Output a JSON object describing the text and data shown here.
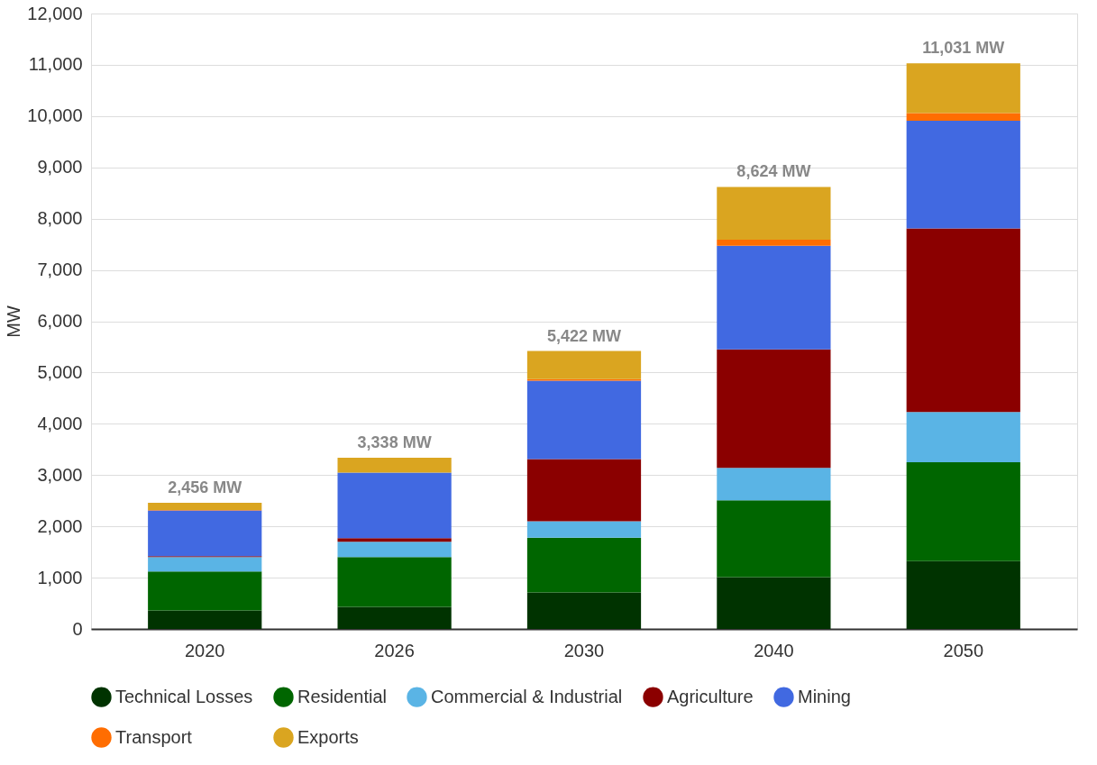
{
  "chart_data": {
    "type": "bar",
    "stacked": true,
    "ylabel": "MW",
    "categories": [
      "2020",
      "2026",
      "2030",
      "2040",
      "2050"
    ],
    "series": [
      {
        "name": "Technical Losses",
        "color": "#003300",
        "values": [
          360,
          430,
          710,
          1010,
          1320
        ]
      },
      {
        "name": "Residential",
        "color": "#006600",
        "values": [
          760,
          970,
          1070,
          1500,
          1930
        ]
      },
      {
        "name": "Commercial & Industrial",
        "color": "#5ab4e5",
        "values": [
          280,
          300,
          320,
          630,
          980
        ]
      },
      {
        "name": "Agriculture",
        "color": "#8b0000",
        "values": [
          20,
          70,
          1210,
          2310,
          3580
        ]
      },
      {
        "name": "Mining",
        "color": "#4169e1",
        "values": [
          890,
          1280,
          1530,
          2020,
          2100
        ]
      },
      {
        "name": "Transport",
        "color": "#ff6d01",
        "values": [
          10,
          null,
          30,
          120,
          150
        ]
      },
      {
        "name": "Exports",
        "color": "#daa520",
        "values": [
          140,
          290,
          550,
          1030,
          970
        ]
      }
    ],
    "totals": [
      "2,456 MW",
      "3,338 MW",
      "5,422 MW",
      "8,624 MW",
      "11,031 MW"
    ],
    "ylim": [
      0,
      12000
    ],
    "yticks": [
      0,
      {
        "value": 1000,
        "label": "1,000"
      },
      {
        "value": 2000,
        "label": "2,000"
      },
      {
        "value": 3000,
        "label": "3,000"
      },
      {
        "value": 4000,
        "label": "4,000"
      },
      {
        "value": 5000,
        "label": "5,000"
      },
      {
        "value": 6000,
        "label": "6,000"
      },
      {
        "value": 7000,
        "label": "7,000"
      },
      {
        "value": 8000,
        "label": "8,000"
      },
      {
        "value": 9000,
        "label": "9,000"
      },
      {
        "value": 10000,
        "label": "10,000"
      },
      {
        "value": 11000,
        "label": "11,000"
      },
      {
        "value": 12000,
        "label": "12,000"
      }
    ],
    "grid": "y",
    "legend": "bottom"
  }
}
